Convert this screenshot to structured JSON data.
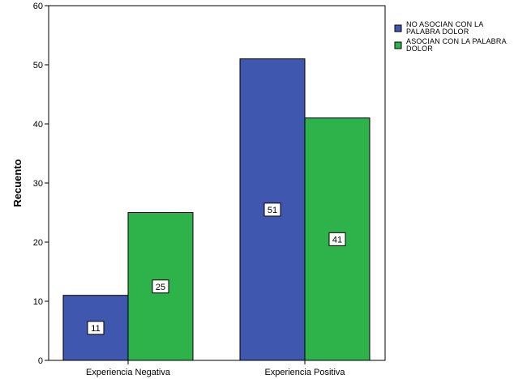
{
  "chart_data": {
    "type": "bar",
    "categories": [
      "Experiencia Negativa",
      "Experiencia Positiva"
    ],
    "series": [
      {
        "name": "NO ASOCIAN CON LA PALABRA DOLOR",
        "legend_lines": [
          "NO ASOCIAN CON LA",
          "PALABRA DOLOR"
        ],
        "values": [
          11,
          51
        ],
        "color": "#3F57AE"
      },
      {
        "name": "ASOCIAN CON LA PALABRA DOLOR",
        "legend_lines": [
          "ASOCIAN CON LA PALABRA",
          "DOLOR"
        ],
        "values": [
          25,
          41
        ],
        "color": "#2EB34A"
      }
    ],
    "xlabel": "",
    "ylabel": "Recuento",
    "ylim": [
      0,
      60
    ],
    "yticks": [
      0,
      10,
      20,
      30,
      40,
      50,
      60
    ],
    "data_labels": true,
    "grid": false,
    "legend_position": "top-right"
  }
}
